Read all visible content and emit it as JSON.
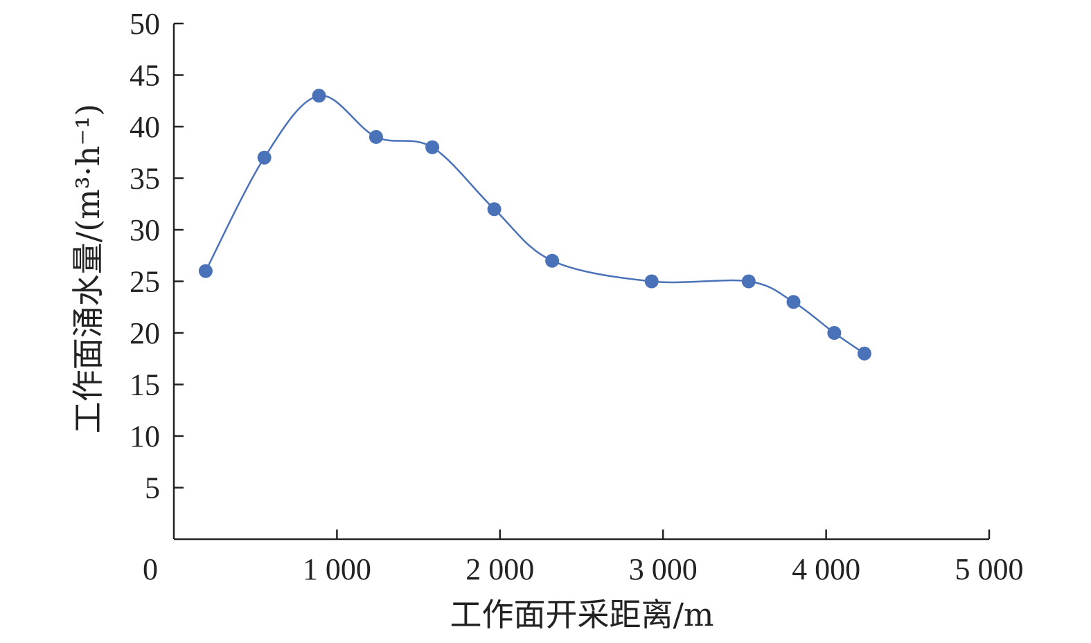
{
  "chart_data": {
    "type": "line",
    "title": "",
    "xlabel": "工作面开采距离/m",
    "ylabel": "工作面涌水量/(m³·h⁻¹)",
    "xlim": [
      0,
      5000
    ],
    "ylim": [
      0,
      50
    ],
    "x_ticks": [
      {
        "value": 0,
        "label": "0"
      },
      {
        "value": 1000,
        "label": "1 000"
      },
      {
        "value": 2000,
        "label": "2 000"
      },
      {
        "value": 3000,
        "label": "3 000"
      },
      {
        "value": 4000,
        "label": "4 000"
      },
      {
        "value": 5000,
        "label": "5 000"
      }
    ],
    "y_ticks": [
      {
        "value": 5,
        "label": "5"
      },
      {
        "value": 10,
        "label": "10"
      },
      {
        "value": 15,
        "label": "15"
      },
      {
        "value": 20,
        "label": "20"
      },
      {
        "value": 25,
        "label": "25"
      },
      {
        "value": 30,
        "label": "30"
      },
      {
        "value": 35,
        "label": "35"
      },
      {
        "value": 40,
        "label": "40"
      },
      {
        "value": 45,
        "label": "45"
      },
      {
        "value": 50,
        "label": "50"
      }
    ],
    "grid": false,
    "legend": "none",
    "series": [
      {
        "color": "#4a72b8",
        "x": [
          195,
          555,
          890,
          1240,
          1585,
          1965,
          2320,
          2930,
          3525,
          3800,
          4050,
          4235
        ],
        "y": [
          26,
          37,
          43,
          39,
          38,
          32,
          27,
          25,
          25,
          23,
          20,
          18
        ]
      }
    ]
  }
}
